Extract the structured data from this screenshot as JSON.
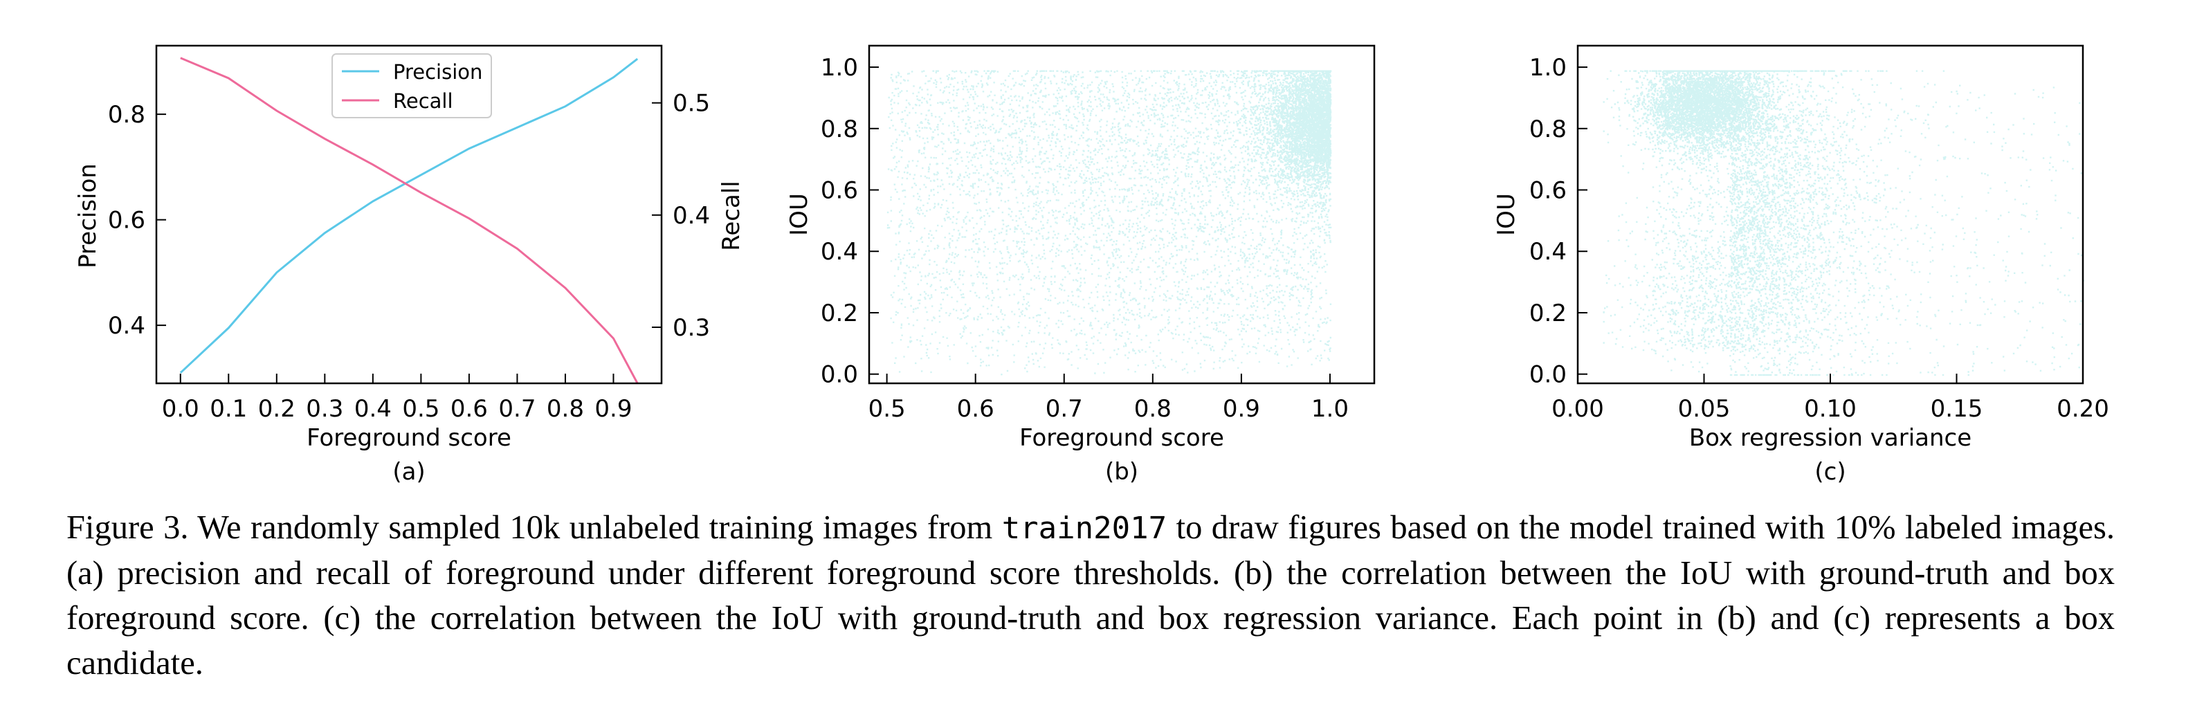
{
  "chart_data": [
    {
      "id": "a",
      "type": "line",
      "panel_label": "(a)",
      "xlabel": "Foreground score",
      "ylabel_left": "Precision",
      "ylabel_right": "Recall",
      "x": [
        0.0,
        0.1,
        0.2,
        0.3,
        0.4,
        0.5,
        0.6,
        0.7,
        0.8,
        0.9,
        0.95
      ],
      "xticks": [
        "0.0",
        "0.1",
        "0.2",
        "0.3",
        "0.4",
        "0.5",
        "0.6",
        "0.7",
        "0.8",
        "0.9"
      ],
      "xlim": [
        -0.05,
        1.0
      ],
      "ylim_left": [
        0.29,
        0.93
      ],
      "ylim_right": [
        0.25,
        0.551
      ],
      "yticks_left": [
        "0.4",
        "0.6",
        "0.8"
      ],
      "yticks_right": [
        "0.3",
        "0.4",
        "0.5"
      ],
      "series": [
        {
          "name": "Precision",
          "axis": "left",
          "color": "#5bc8e8",
          "values": [
            0.31,
            0.395,
            0.5,
            0.575,
            0.635,
            0.685,
            0.735,
            0.775,
            0.815,
            0.87,
            0.905
          ]
        },
        {
          "name": "Recall",
          "axis": "right",
          "color": "#ee6a9a",
          "values": [
            0.54,
            0.522,
            0.493,
            0.468,
            0.445,
            0.42,
            0.397,
            0.37,
            0.335,
            0.29,
            0.25
          ]
        }
      ],
      "legend": "top-center"
    },
    {
      "id": "b",
      "type": "scatter",
      "panel_label": "(b)",
      "xlabel": "Foreground score",
      "ylabel": "IOU",
      "xlim": [
        0.48,
        1.05
      ],
      "ylim": [
        -0.03,
        1.07
      ],
      "xticks": [
        "0.5",
        "0.6",
        "0.7",
        "0.8",
        "0.9",
        "1.0"
      ],
      "yticks": [
        "0.0",
        "0.2",
        "0.4",
        "0.6",
        "0.8",
        "1.0"
      ],
      "color": "#5ed3d3",
      "sample_points": 10000
    },
    {
      "id": "c",
      "type": "scatter",
      "panel_label": "(c)",
      "xlabel": "Box regression variance",
      "ylabel": "IOU",
      "xlim": [
        0.0,
        0.2
      ],
      "ylim": [
        -0.03,
        1.07
      ],
      "xticks": [
        "0.00",
        "0.05",
        "0.10",
        "0.15",
        "0.20"
      ],
      "yticks": [
        "0.0",
        "0.2",
        "0.4",
        "0.6",
        "0.8",
        "1.0"
      ],
      "color": "#5ed3d3",
      "sample_points": 10000
    }
  ],
  "caption": {
    "part1": "Figure 3. We randomly sampled 10k unlabeled training images from ",
    "code": "train2017",
    "part2": " to draw figures based on the model trained with 10% labeled images. (a) precision and recall of foreground under different foreground score thresholds. (b) the correlation between the IoU with ground-truth and box foreground score. (c) the correlation between the IoU with ground-truth and box regression variance. Each point in (b) and (c) represents a box candidate."
  }
}
